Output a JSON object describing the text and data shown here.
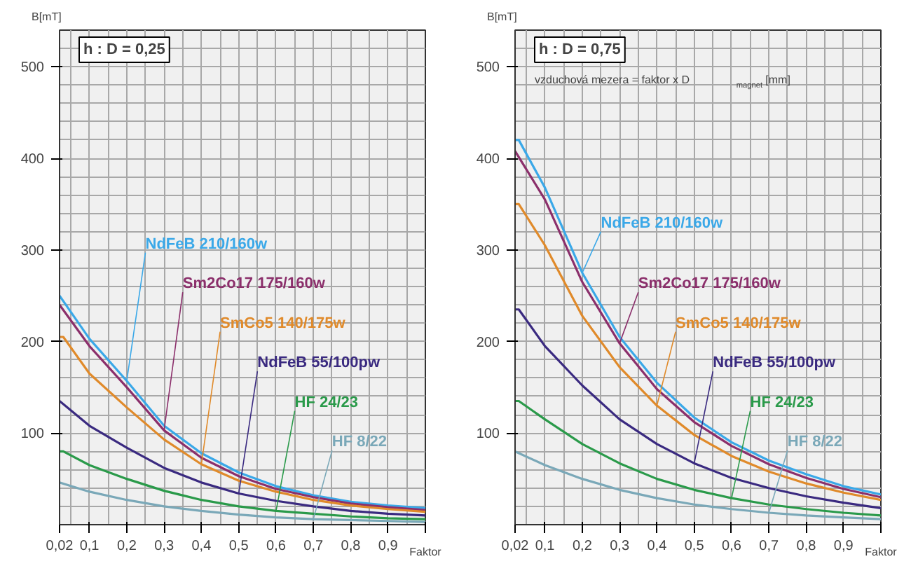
{
  "chart_data": [
    {
      "type": "line",
      "title": "h : D = 0,25",
      "xlabel": "Faktor",
      "ylabel": "B[mT]",
      "xlim": [
        0.02,
        1.0
      ],
      "ylim": [
        0,
        540
      ],
      "xticks": [
        {
          "value": 0.02,
          "label": "0,02"
        },
        {
          "value": 0.1,
          "label": "0,1"
        },
        {
          "value": 0.2,
          "label": "0,2"
        },
        {
          "value": 0.3,
          "label": "0,3"
        },
        {
          "value": 0.4,
          "label": "0,4"
        },
        {
          "value": 0.5,
          "label": "0,5"
        },
        {
          "value": 0.6,
          "label": "0,6"
        },
        {
          "value": 0.7,
          "label": "0,7"
        },
        {
          "value": 0.8,
          "label": "0,8"
        },
        {
          "value": 0.9,
          "label": "0,9"
        },
        {
          "value": 1.0,
          "label": null
        }
      ],
      "yticks": [
        100,
        200,
        300,
        400,
        500
      ],
      "grid": true,
      "series": [
        {
          "name": "NdFeB 210/160w",
          "color": "#3aa8e8",
          "x": [
            0.02,
            0.1,
            0.2,
            0.3,
            0.4,
            0.5,
            0.6,
            0.7,
            0.8,
            0.9,
            1.0
          ],
          "values": [
            250,
            203,
            157,
            108,
            78,
            57,
            42,
            32,
            25,
            21,
            18
          ]
        },
        {
          "name": "Sm2Co17 175/160w",
          "color": "#8b2f6b",
          "x": [
            0.02,
            0.1,
            0.2,
            0.3,
            0.4,
            0.5,
            0.6,
            0.7,
            0.8,
            0.9,
            1.0
          ],
          "values": [
            240,
            195,
            150,
            103,
            73,
            53,
            39,
            30,
            23,
            19,
            16
          ]
        },
        {
          "name": "SmCo5 140/175w",
          "color": "#e08a2a",
          "x": [
            0.02,
            0.03,
            0.1,
            0.2,
            0.3,
            0.4,
            0.5,
            0.6,
            0.7,
            0.8,
            0.9,
            1.0
          ],
          "values": [
            205,
            205,
            165,
            128,
            93,
            66,
            48,
            36,
            27,
            21,
            17,
            14
          ]
        },
        {
          "name": "NdFeB 55/100pw",
          "color": "#3a2a80",
          "x": [
            0.02,
            0.1,
            0.2,
            0.3,
            0.4,
            0.5,
            0.6,
            0.7,
            0.8,
            0.9,
            1.0
          ],
          "values": [
            135,
            108,
            84,
            62,
            46,
            34,
            26,
            20,
            15,
            12,
            10
          ]
        },
        {
          "name": "HF 24/23",
          "color": "#2a9a4a",
          "x": [
            0.02,
            0.03,
            0.1,
            0.2,
            0.3,
            0.4,
            0.5,
            0.6,
            0.7,
            0.8,
            0.9,
            1.0
          ],
          "values": [
            80,
            80,
            65,
            50,
            37,
            27,
            20,
            15,
            12,
            9,
            7,
            6
          ]
        },
        {
          "name": "HF 8/22",
          "color": "#7aa8b8",
          "x": [
            0.02,
            0.1,
            0.2,
            0.3,
            0.4,
            0.5,
            0.6,
            0.7,
            0.8,
            0.9,
            1.0
          ],
          "values": [
            46,
            36,
            27,
            20,
            15,
            11,
            8,
            6,
            5,
            4,
            3
          ]
        }
      ]
    },
    {
      "type": "line",
      "title": "h : D = 0,75",
      "subtitle": "vzduchová mezera = faktor x D$_{magnet}$ [mm]",
      "xlabel": "Faktor",
      "ylabel": "B[mT]",
      "xlim": [
        0.02,
        1.0
      ],
      "ylim": [
        0,
        540
      ],
      "xticks": [
        {
          "value": 0.02,
          "label": "0,02"
        },
        {
          "value": 0.1,
          "label": "0,1"
        },
        {
          "value": 0.2,
          "label": "0,2"
        },
        {
          "value": 0.3,
          "label": "0,3"
        },
        {
          "value": 0.4,
          "label": "0,4"
        },
        {
          "value": 0.5,
          "label": "0,5"
        },
        {
          "value": 0.6,
          "label": "0,6"
        },
        {
          "value": 0.7,
          "label": "0,7"
        },
        {
          "value": 0.8,
          "label": "0,8"
        },
        {
          "value": 0.9,
          "label": "0,9"
        },
        {
          "value": 1.0,
          "label": null
        }
      ],
      "yticks": [
        100,
        200,
        300,
        400,
        500
      ],
      "grid": true,
      "series": [
        {
          "name": "NdFeB 210/160w",
          "color": "#3aa8e8",
          "x": [
            0.02,
            0.03,
            0.1,
            0.2,
            0.3,
            0.4,
            0.5,
            0.6,
            0.7,
            0.8,
            0.9,
            1.0
          ],
          "values": [
            420,
            420,
            368,
            275,
            205,
            155,
            117,
            90,
            70,
            55,
            42,
            33
          ]
        },
        {
          "name": "Sm2Co17 175/160w",
          "color": "#8b2f6b",
          "x": [
            0.02,
            0.1,
            0.2,
            0.3,
            0.4,
            0.5,
            0.6,
            0.7,
            0.8,
            0.9,
            1.0
          ],
          "values": [
            408,
            355,
            265,
            198,
            148,
            112,
            86,
            66,
            51,
            39,
            30
          ]
        },
        {
          "name": "SmCo5 140/175w",
          "color": "#e08a2a",
          "x": [
            0.02,
            0.03,
            0.1,
            0.2,
            0.3,
            0.4,
            0.5,
            0.6,
            0.7,
            0.8,
            0.9,
            1.0
          ],
          "values": [
            350,
            350,
            305,
            228,
            172,
            130,
            98,
            75,
            58,
            45,
            35,
            27
          ]
        },
        {
          "name": "NdFeB 55/100pw",
          "color": "#3a2a80",
          "x": [
            0.02,
            0.03,
            0.1,
            0.2,
            0.3,
            0.4,
            0.5,
            0.6,
            0.7,
            0.8,
            0.9,
            1.0
          ],
          "values": [
            235,
            235,
            195,
            152,
            115,
            88,
            67,
            51,
            40,
            31,
            24,
            18
          ]
        },
        {
          "name": "HF 24/23",
          "color": "#2a9a4a",
          "x": [
            0.02,
            0.03,
            0.1,
            0.2,
            0.3,
            0.4,
            0.5,
            0.6,
            0.7,
            0.8,
            0.9,
            1.0
          ],
          "values": [
            135,
            135,
            115,
            88,
            67,
            50,
            38,
            29,
            22,
            17,
            13,
            10
          ]
        },
        {
          "name": "HF 8/22",
          "color": "#7aa8b8",
          "x": [
            0.02,
            0.1,
            0.2,
            0.3,
            0.4,
            0.5,
            0.6,
            0.7,
            0.8,
            0.9,
            1.0
          ],
          "values": [
            80,
            65,
            50,
            38,
            29,
            22,
            17,
            13,
            10,
            8,
            6
          ]
        }
      ]
    }
  ]
}
